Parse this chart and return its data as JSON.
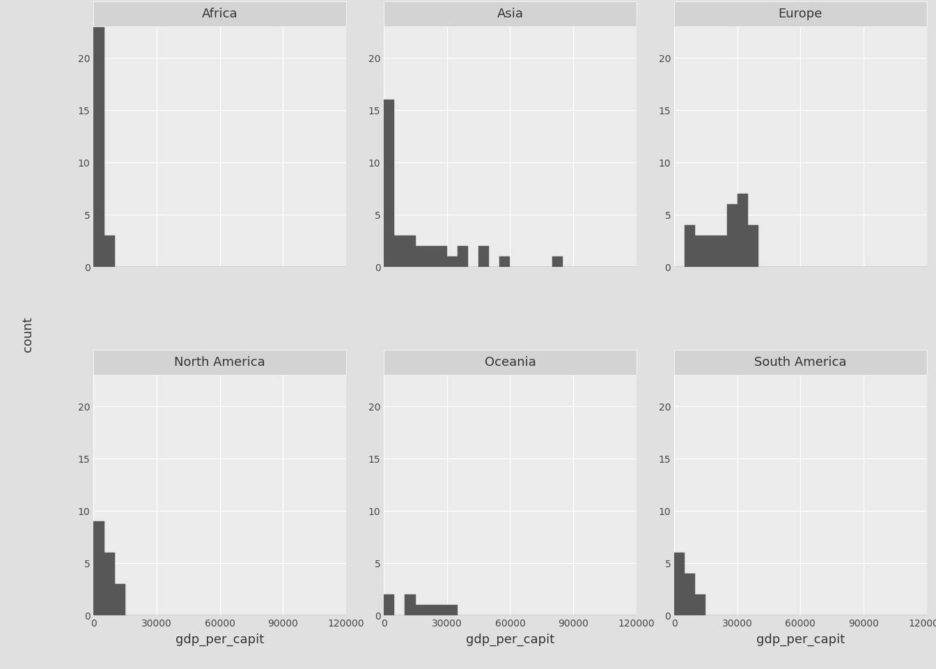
{
  "continents": [
    "Africa",
    "Asia",
    "Europe",
    "North America",
    "Oceania",
    "South America"
  ],
  "ncols": 3,
  "nrows": 2,
  "bin_width": 5000,
  "xlim": [
    0,
    120000
  ],
  "xticks": [
    0,
    30000,
    60000,
    90000,
    120000
  ],
  "xtick_labels": [
    "0",
    "30000",
    "60000",
    "90000",
    "120000"
  ],
  "ylim": [
    0,
    23
  ],
  "yticks": [
    0,
    5,
    10,
    15,
    20
  ],
  "bar_color": "#575757",
  "bg_color": "#EBEBEB",
  "outer_bg": "#E0E0E0",
  "strip_bg": "#D3D3D3",
  "grid_color": "#FFFFFF",
  "xlabel": "gdp_per_capit",
  "ylabel": "count",
  "strip_fontsize": 13,
  "axis_label_fontsize": 13,
  "tick_fontsize": 10,
  "hist_data": {
    "Africa": [
      469,
      635,
      347,
      651,
      493,
      793,
      478,
      706,
      986,
      277,
      1009,
      2367,
      1217,
      430,
      3632,
      1589,
      743,
      562,
      1056,
      1704,
      514,
      672,
      1327,
      553,
      1463,
      2082,
      1598,
      1441,
      862,
      966,
      759,
      1107,
      1056,
      3820,
      4508,
      5186,
      7670,
      6025,
      1030,
      1024,
      579,
      1044,
      1548,
      1500,
      690,
      734,
      1042,
      1803,
      620,
      436,
      786,
      954
    ],
    "Asia": [
      974,
      2406,
      29796,
      3540,
      1391,
      3095,
      4959,
      12057,
      2280,
      4471,
      39725,
      1713,
      7458,
      945,
      1175,
      12452,
      1091,
      2143,
      47307,
      16254,
      37451,
      19329,
      22316,
      33519,
      3970,
      21654,
      636,
      9809,
      27538,
      1874,
      7092,
      80894,
      49357,
      13206,
      59265
    ],
    "Europe": [
      5937,
      36981,
      33693,
      7446,
      10681,
      14619,
      22833,
      28821,
      33693,
      36319,
      34077,
      25768,
      10956,
      18009,
      9786,
      15389,
      20510,
      33207,
      27538,
      18261,
      23912,
      28569,
      9327,
      36180,
      33960,
      25185,
      31540,
      30070,
      25768,
      36319
    ],
    "North America": [
      1201,
      1353,
      631,
      1202,
      2865,
      7320,
      1271,
      5349,
      2423,
      6223,
      4985,
      1704,
      7092,
      6873,
      11728,
      8948,
      11878,
      12920
    ],
    "Oceania": [
      1462,
      11628,
      3822,
      30687,
      26940,
      22316,
      17596,
      14499
    ],
    "South America": [
      5716,
      2908,
      7007,
      1556,
      3952,
      4616,
      9065,
      12779,
      9535,
      3548,
      2748,
      13172
    ]
  }
}
